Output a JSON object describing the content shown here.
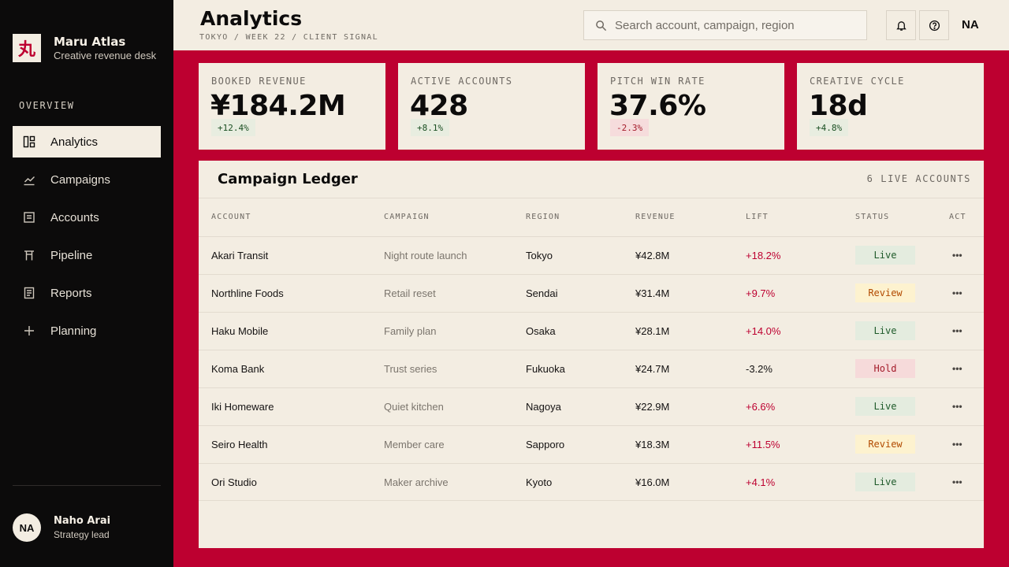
{
  "brand": {
    "logo_glyph": "丸",
    "name": "Maru Atlas",
    "subtitle": "Creative revenue desk"
  },
  "sidebar": {
    "section_label": "OVERVIEW",
    "items": [
      {
        "label": "Analytics",
        "icon": "dashboard-icon",
        "active": true
      },
      {
        "label": "Campaigns",
        "icon": "chart-line-icon",
        "active": false
      },
      {
        "label": "Accounts",
        "icon": "ledger-icon",
        "active": false
      },
      {
        "label": "Pipeline",
        "icon": "pipeline-icon",
        "active": false
      },
      {
        "label": "Reports",
        "icon": "report-icon",
        "active": false
      },
      {
        "label": "Planning",
        "icon": "plus-icon",
        "active": false
      }
    ],
    "user": {
      "initials": "NA",
      "name": "Naho Arai",
      "role": "Strategy lead"
    }
  },
  "header": {
    "title": "Analytics",
    "breadcrumb": "TOKYO / WEEK 22 / CLIENT SIGNAL",
    "search_placeholder": "Search account, campaign, region",
    "initials": "NA"
  },
  "kpis": [
    {
      "label": "BOOKED REVENUE",
      "value": "¥184.2M",
      "delta": "+12.4%",
      "trend": "up"
    },
    {
      "label": "ACTIVE ACCOUNTS",
      "value": "428",
      "delta": "+8.1%",
      "trend": "up"
    },
    {
      "label": "PITCH WIN RATE",
      "value": "37.6%",
      "delta": "-2.3%",
      "trend": "down"
    },
    {
      "label": "CREATIVE CYCLE",
      "value": "18d",
      "delta": "+4.8%",
      "trend": "up"
    }
  ],
  "ledger": {
    "title": "Campaign Ledger",
    "count_label": "6 LIVE ACCOUNTS",
    "columns": {
      "account": "ACCOUNT",
      "campaign": "CAMPAIGN",
      "region": "REGION",
      "revenue": "REVENUE",
      "lift": "LIFT",
      "status": "STATUS",
      "act": "ACT"
    },
    "action_glyph": "•••",
    "rows": [
      {
        "account": "Akari Transit",
        "campaign": "Night route launch",
        "region": "Tokyo",
        "revenue": "¥42.8M",
        "lift": "+18.2%",
        "status": "Live"
      },
      {
        "account": "Northline Foods",
        "campaign": "Retail reset",
        "region": "Sendai",
        "revenue": "¥31.4M",
        "lift": "+9.7%",
        "status": "Review"
      },
      {
        "account": "Haku Mobile",
        "campaign": "Family plan",
        "region": "Osaka",
        "revenue": "¥28.1M",
        "lift": "+14.0%",
        "status": "Live"
      },
      {
        "account": "Koma Bank",
        "campaign": "Trust series",
        "region": "Fukuoka",
        "revenue": "¥24.7M",
        "lift": "-3.2%",
        "status": "Hold"
      },
      {
        "account": "Iki Homeware",
        "campaign": "Quiet kitchen",
        "region": "Nagoya",
        "revenue": "¥22.9M",
        "lift": "+6.6%",
        "status": "Live"
      },
      {
        "account": "Seiro Health",
        "campaign": "Member care",
        "region": "Sapporo",
        "revenue": "¥18.3M",
        "lift": "+11.5%",
        "status": "Review"
      },
      {
        "account": "Ori Studio",
        "campaign": "Maker archive",
        "region": "Kyoto",
        "revenue": "¥16.0M",
        "lift": "+4.1%",
        "status": "Live"
      }
    ]
  },
  "colors": {
    "accent": "#bd0030",
    "sidebar": "#0c0b0b",
    "surface": "#f3ede2"
  }
}
